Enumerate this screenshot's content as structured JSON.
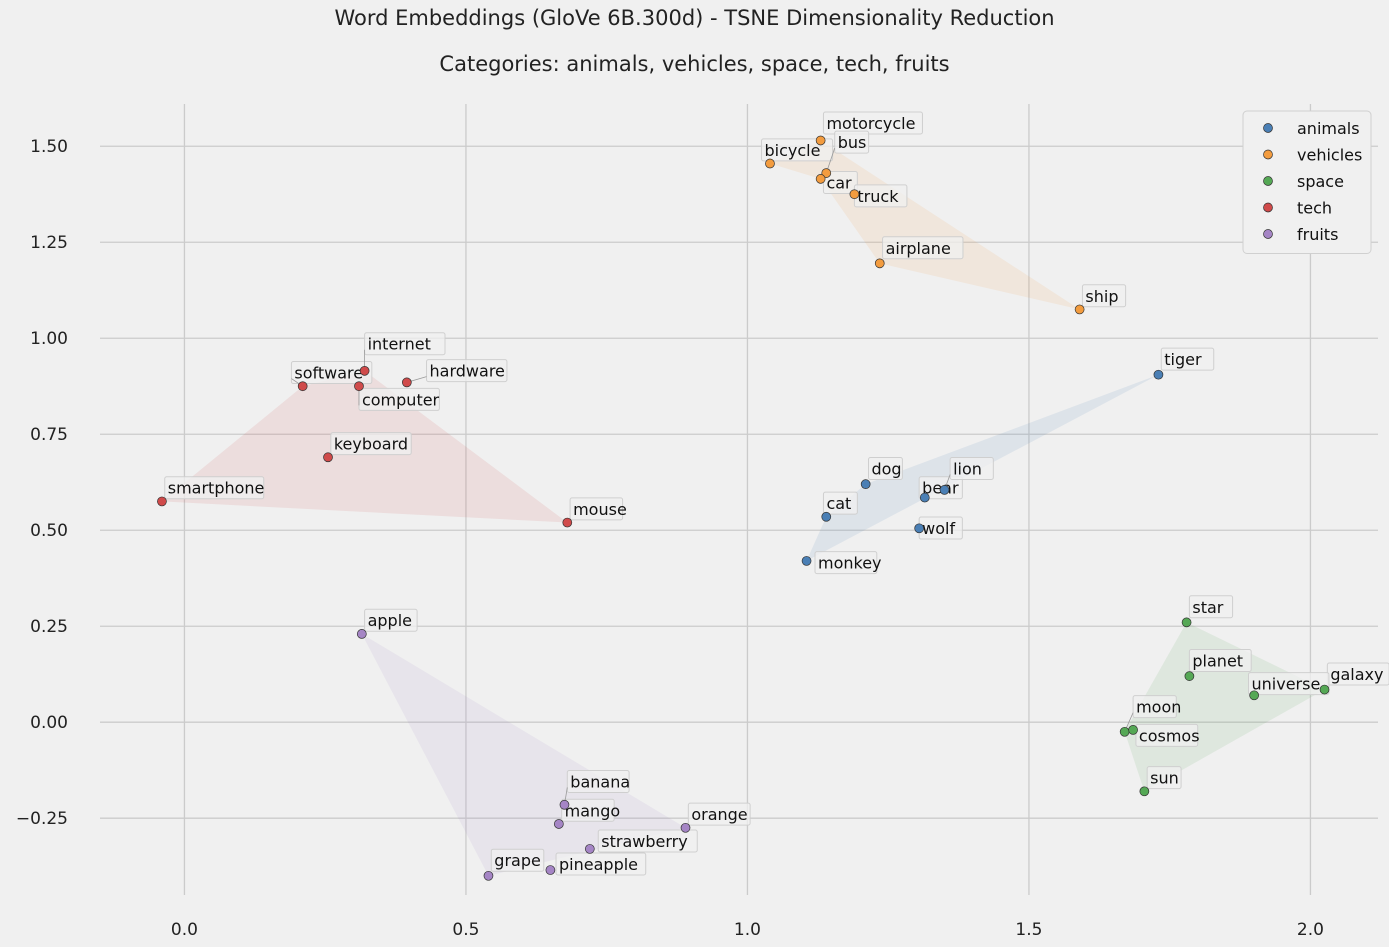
{
  "chart_data": {
    "type": "scatter",
    "title": "Word Embeddings (GloVe 6B.300d) - TSNE Dimensionality Reduction",
    "subtitle": "Categories: animals, vehicles, space, tech, fruits",
    "xlim": [
      -0.15,
      2.12
    ],
    "ylim": [
      -0.45,
      1.61
    ],
    "x_ticks": [
      0.0,
      0.5,
      1.0,
      1.5,
      2.0
    ],
    "x_tick_labels": [
      "0.0",
      "0.5",
      "1.0",
      "1.5",
      "2.0"
    ],
    "y_ticks": [
      -0.25,
      0.0,
      0.25,
      0.5,
      0.75,
      1.0,
      1.25,
      1.5
    ],
    "y_tick_labels": [
      "−0.25",
      "0.00",
      "0.25",
      "0.50",
      "0.75",
      "1.00",
      "1.25",
      "1.50"
    ],
    "grid": true,
    "legend_position": "top-right",
    "series": [
      {
        "name": "animals",
        "color": "#4a7fb5",
        "hull": [
          "tiger",
          "monkey",
          "cat",
          "dog"
        ],
        "points": [
          {
            "label": "dog",
            "x": 1.21,
            "y": 0.62,
            "lx": 1.215,
            "ly": 0.645
          },
          {
            "label": "cat",
            "x": 1.14,
            "y": 0.535,
            "lx": 1.135,
            "ly": 0.555
          },
          {
            "label": "monkey",
            "x": 1.105,
            "y": 0.42,
            "lx": 1.12,
            "ly": 0.4
          },
          {
            "label": "bear",
            "x": 1.315,
            "y": 0.585,
            "lx": 1.305,
            "ly": 0.595
          },
          {
            "label": "lion",
            "x": 1.35,
            "y": 0.605,
            "lx": 1.36,
            "ly": 0.645
          },
          {
            "label": "wolf",
            "x": 1.305,
            "y": 0.505,
            "lx": 1.305,
            "ly": 0.49
          },
          {
            "label": "tiger",
            "x": 1.73,
            "y": 0.905,
            "lx": 1.735,
            "ly": 0.93
          }
        ]
      },
      {
        "name": "vehicles",
        "color": "#f39c3f",
        "hull": [
          "motorcycle",
          "ship",
          "airplane",
          "car",
          "bicycle"
        ],
        "points": [
          {
            "label": "bicycle",
            "x": 1.04,
            "y": 1.455,
            "lx": 1.025,
            "ly": 1.475
          },
          {
            "label": "motorcycle",
            "x": 1.13,
            "y": 1.515,
            "lx": 1.135,
            "ly": 1.545
          },
          {
            "label": "bus",
            "x": 1.14,
            "y": 1.43,
            "lx": 1.155,
            "ly": 1.495
          },
          {
            "label": "car",
            "x": 1.13,
            "y": 1.415,
            "lx": 1.135,
            "ly": 1.39
          },
          {
            "label": "truck",
            "x": 1.19,
            "y": 1.375,
            "lx": 1.19,
            "ly": 1.355
          },
          {
            "label": "airplane",
            "x": 1.235,
            "y": 1.195,
            "lx": 1.24,
            "ly": 1.22
          },
          {
            "label": "ship",
            "x": 1.59,
            "y": 1.075,
            "lx": 1.595,
            "ly": 1.095
          }
        ]
      },
      {
        "name": "space",
        "color": "#55a855",
        "hull": [
          "star",
          "galaxy",
          "sun",
          "moon"
        ],
        "points": [
          {
            "label": "star",
            "x": 1.78,
            "y": 0.26,
            "lx": 1.785,
            "ly": 0.285
          },
          {
            "label": "planet",
            "x": 1.785,
            "y": 0.12,
            "lx": 1.785,
            "ly": 0.145
          },
          {
            "label": "galaxy",
            "x": 2.025,
            "y": 0.085,
            "lx": 2.03,
            "ly": 0.11
          },
          {
            "label": "universe",
            "x": 1.9,
            "y": 0.07,
            "lx": 1.89,
            "ly": 0.085
          },
          {
            "label": "moon",
            "x": 1.67,
            "y": -0.025,
            "lx": 1.685,
            "ly": 0.025
          },
          {
            "label": "cosmos",
            "x": 1.685,
            "y": -0.02,
            "lx": 1.69,
            "ly": -0.05
          },
          {
            "label": "sun",
            "x": 1.705,
            "y": -0.18,
            "lx": 1.71,
            "ly": -0.16
          }
        ]
      },
      {
        "name": "tech",
        "color": "#d04a4a",
        "hull": [
          "smartphone",
          "software",
          "internet",
          "mouse"
        ],
        "points": [
          {
            "label": "internet",
            "x": 0.32,
            "y": 0.915,
            "lx": 0.32,
            "ly": 0.97
          },
          {
            "label": "software",
            "x": 0.21,
            "y": 0.875,
            "lx": 0.19,
            "ly": 0.895
          },
          {
            "label": "hardware",
            "x": 0.395,
            "y": 0.885,
            "lx": 0.43,
            "ly": 0.9
          },
          {
            "label": "computer",
            "x": 0.31,
            "y": 0.875,
            "lx": 0.31,
            "ly": 0.825
          },
          {
            "label": "keyboard",
            "x": 0.255,
            "y": 0.69,
            "lx": 0.26,
            "ly": 0.71
          },
          {
            "label": "smartphone",
            "x": -0.04,
            "y": 0.575,
            "lx": -0.035,
            "ly": 0.595
          },
          {
            "label": "mouse",
            "x": 0.68,
            "y": 0.52,
            "lx": 0.685,
            "ly": 0.54
          }
        ]
      },
      {
        "name": "fruits",
        "color": "#a585c5",
        "hull": [
          "apple",
          "orange",
          "grape"
        ],
        "points": [
          {
            "label": "apple",
            "x": 0.315,
            "y": 0.23,
            "lx": 0.32,
            "ly": 0.25
          },
          {
            "label": "banana",
            "x": 0.675,
            "y": -0.215,
            "lx": 0.68,
            "ly": -0.17
          },
          {
            "label": "mango",
            "x": 0.665,
            "y": -0.265,
            "lx": 0.67,
            "ly": -0.245
          },
          {
            "label": "orange",
            "x": 0.89,
            "y": -0.275,
            "lx": 0.895,
            "ly": -0.255
          },
          {
            "label": "strawberry",
            "x": 0.72,
            "y": -0.33,
            "lx": 0.735,
            "ly": -0.325
          },
          {
            "label": "pineapple",
            "x": 0.65,
            "y": -0.385,
            "lx": 0.66,
            "ly": -0.385
          },
          {
            "label": "grape",
            "x": 0.54,
            "y": -0.4,
            "lx": 0.545,
            "ly": -0.375
          }
        ]
      }
    ]
  }
}
